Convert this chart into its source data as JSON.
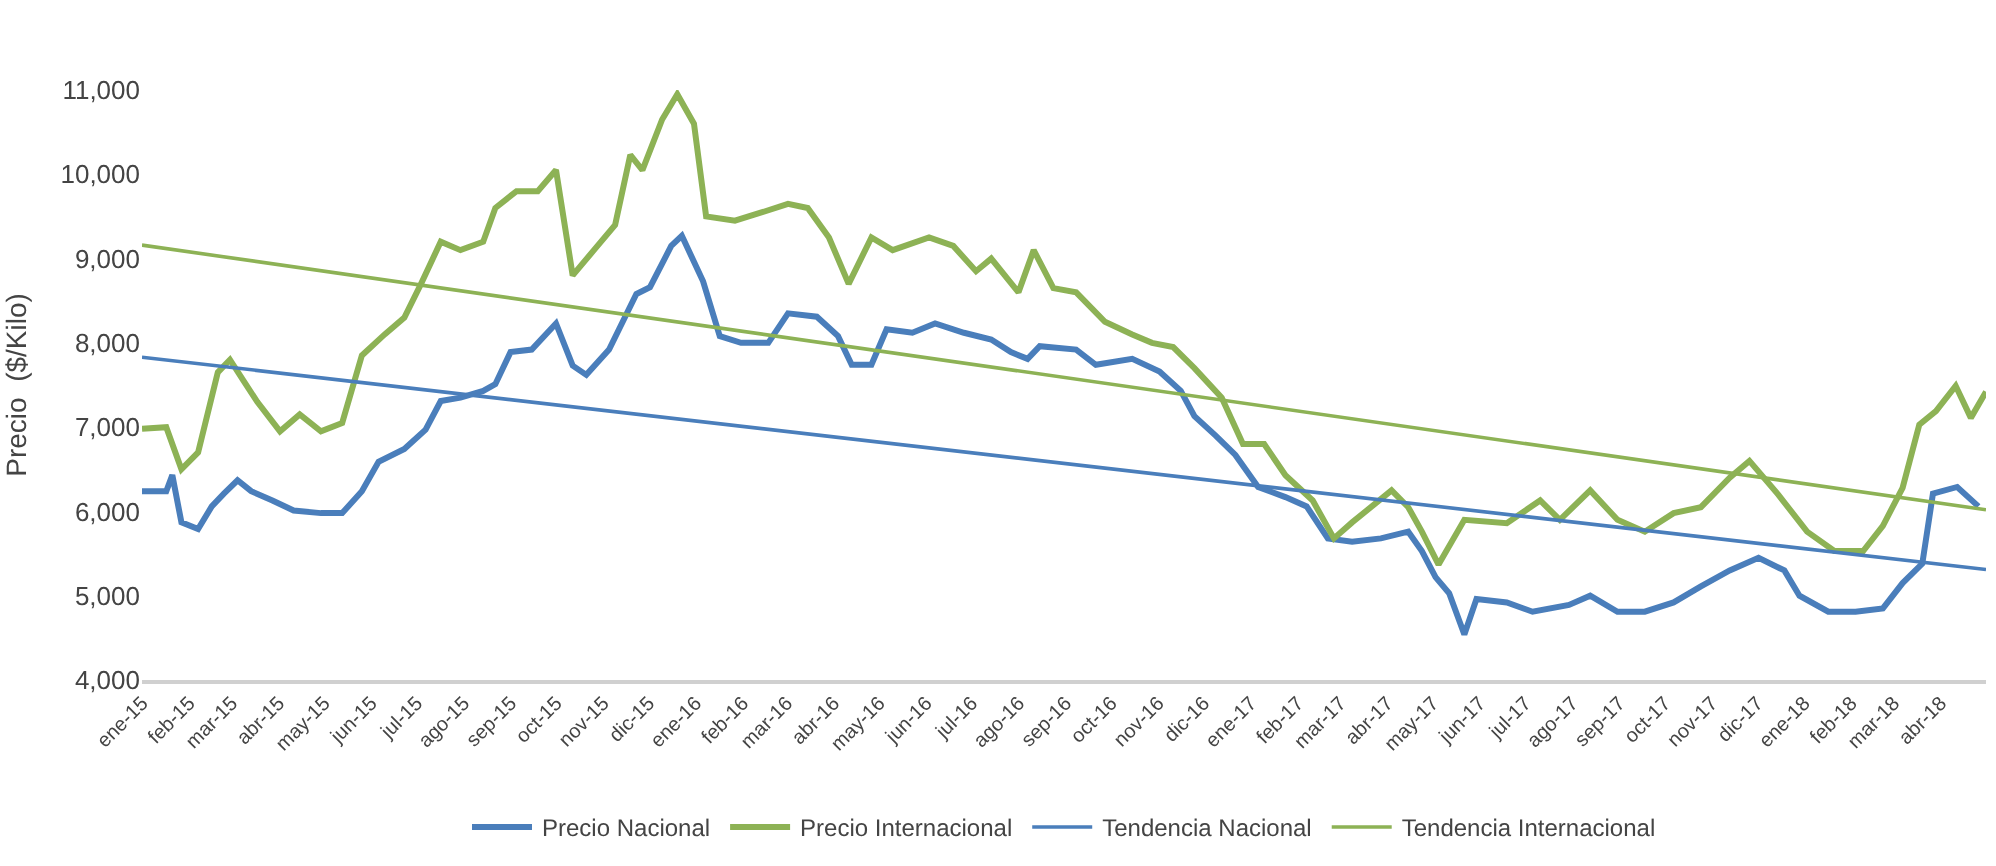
{
  "chart_data": {
    "type": "line",
    "ylabel": "Precio  ($/Kilo)",
    "ylim": [
      4000,
      11000
    ],
    "yticks": [
      {
        "value": 4000,
        "label": "4,000"
      },
      {
        "value": 5000,
        "label": "5,000"
      },
      {
        "value": 6000,
        "label": "6,000"
      },
      {
        "value": 7000,
        "label": "7,000"
      },
      {
        "value": 8000,
        "label": "8,000"
      },
      {
        "value": 9000,
        "label": "9,000"
      },
      {
        "value": 10000,
        "label": "10,000"
      },
      {
        "value": 11000,
        "label": "11,000"
      }
    ],
    "xlim": [
      "2015-01-01",
      "2018-05-01"
    ],
    "xticks": [
      {
        "value": "2015-01-01",
        "label": "ene-15"
      },
      {
        "value": "2015-02-01",
        "label": "feb-15"
      },
      {
        "value": "2015-03-01",
        "label": "mar-15"
      },
      {
        "value": "2015-04-01",
        "label": "abr-15"
      },
      {
        "value": "2015-05-01",
        "label": "may-15"
      },
      {
        "value": "2015-06-01",
        "label": "jun-15"
      },
      {
        "value": "2015-07-01",
        "label": "jul-15"
      },
      {
        "value": "2015-08-01",
        "label": "ago-15"
      },
      {
        "value": "2015-09-01",
        "label": "sep-15"
      },
      {
        "value": "2015-10-01",
        "label": "oct-15"
      },
      {
        "value": "2015-11-01",
        "label": "nov-15"
      },
      {
        "value": "2015-12-01",
        "label": "dic-15"
      },
      {
        "value": "2016-01-01",
        "label": "ene-16"
      },
      {
        "value": "2016-02-01",
        "label": "feb-16"
      },
      {
        "value": "2016-03-01",
        "label": "mar-16"
      },
      {
        "value": "2016-04-01",
        "label": "abr-16"
      },
      {
        "value": "2016-05-01",
        "label": "may-16"
      },
      {
        "value": "2016-06-01",
        "label": "jun-16"
      },
      {
        "value": "2016-07-01",
        "label": "jul-16"
      },
      {
        "value": "2016-08-01",
        "label": "ago-16"
      },
      {
        "value": "2016-09-01",
        "label": "sep-16"
      },
      {
        "value": "2016-10-01",
        "label": "oct-16"
      },
      {
        "value": "2016-11-01",
        "label": "nov-16"
      },
      {
        "value": "2016-12-01",
        "label": "dic-16"
      },
      {
        "value": "2017-01-01",
        "label": "ene-17"
      },
      {
        "value": "2017-02-01",
        "label": "feb-17"
      },
      {
        "value": "2017-03-01",
        "label": "mar-17"
      },
      {
        "value": "2017-04-01",
        "label": "abr-17"
      },
      {
        "value": "2017-05-01",
        "label": "may-17"
      },
      {
        "value": "2017-06-01",
        "label": "jun-17"
      },
      {
        "value": "2017-07-01",
        "label": "jul-17"
      },
      {
        "value": "2017-08-01",
        "label": "ago-17"
      },
      {
        "value": "2017-09-01",
        "label": "sep-17"
      },
      {
        "value": "2017-10-01",
        "label": "oct-17"
      },
      {
        "value": "2017-11-01",
        "label": "nov-17"
      },
      {
        "value": "2017-12-01",
        "label": "dic-17"
      },
      {
        "value": "2018-01-01",
        "label": "ene-18"
      },
      {
        "value": "2018-02-01",
        "label": "feb-18"
      },
      {
        "value": "2018-03-01",
        "label": "mar-18"
      },
      {
        "value": "2018-04-01",
        "label": "abr-18"
      }
    ],
    "legend": "bottom",
    "marker": "none",
    "series": [
      {
        "name": "Precio Nacional",
        "color": "#4a7ebb",
        "x": [
          "2015-01-01",
          "2015-01-17",
          "2015-01-21",
          "2015-01-27",
          "2015-02-07",
          "2015-02-16",
          "2015-02-24",
          "2015-03-05",
          "2015-03-14",
          "2015-03-28",
          "2015-04-11",
          "2015-04-29",
          "2015-05-13",
          "2015-05-26",
          "2015-06-06",
          "2015-06-23",
          "2015-07-07",
          "2015-07-17",
          "2015-07-30",
          "2015-08-14",
          "2015-08-22",
          "2015-09-01",
          "2015-09-15",
          "2015-10-01",
          "2015-10-12",
          "2015-10-21",
          "2015-11-05",
          "2015-11-23",
          "2015-12-02",
          "2015-12-16",
          "2015-12-23",
          "2016-01-06",
          "2016-01-17",
          "2016-01-31",
          "2016-02-18",
          "2016-03-02",
          "2016-03-21",
          "2016-04-04",
          "2016-04-13",
          "2016-04-26",
          "2016-05-06",
          "2016-05-23",
          "2016-06-07",
          "2016-06-26",
          "2016-07-14",
          "2016-07-27",
          "2016-08-07",
          "2016-08-15",
          "2016-09-08",
          "2016-09-21",
          "2016-10-15",
          "2016-11-02",
          "2016-11-16",
          "2016-11-25",
          "2016-12-09",
          "2016-12-22",
          "2017-01-06",
          "2017-01-24",
          "2017-02-07",
          "2017-02-21",
          "2017-03-09",
          "2017-03-28",
          "2017-04-15",
          "2017-04-24",
          "2017-05-03",
          "2017-05-12",
          "2017-05-22",
          "2017-05-30",
          "2017-06-19",
          "2017-07-06",
          "2017-07-30",
          "2017-08-13",
          "2017-08-31",
          "2017-09-18",
          "2017-10-07",
          "2017-10-25",
          "2017-11-13",
          "2017-12-02",
          "2017-12-19",
          "2017-12-29",
          "2018-01-17",
          "2018-02-04",
          "2018-02-22",
          "2018-03-07",
          "2018-03-20",
          "2018-03-27",
          "2018-04-12",
          "2018-04-26"
        ],
        "values": [
          6240,
          6240,
          6430,
          5870,
          5790,
          6060,
          6210,
          6370,
          6240,
          6130,
          6010,
          5980,
          5980,
          6240,
          6590,
          6740,
          6970,
          7310,
          7350,
          7430,
          7510,
          7890,
          7920,
          8230,
          7730,
          7620,
          7920,
          8580,
          8660,
          9150,
          9270,
          8730,
          8080,
          8000,
          8000,
          8350,
          8310,
          8080,
          7740,
          7740,
          8160,
          8120,
          8230,
          8120,
          8040,
          7890,
          7810,
          7960,
          7920,
          7740,
          7810,
          7660,
          7430,
          7130,
          6900,
          6670,
          6290,
          6170,
          6060,
          5680,
          5640,
          5680,
          5760,
          5530,
          5220,
          5030,
          4540,
          4960,
          4920,
          4810,
          4890,
          5000,
          4810,
          4810,
          4920,
          5110,
          5300,
          5450,
          5300,
          5000,
          4810,
          4810,
          4850,
          5150,
          5380,
          6210,
          6290,
          6060
        ]
      },
      {
        "name": "Precio Internacional",
        "color": "#8db255",
        "x": [
          "2015-01-01",
          "2015-01-17",
          "2015-01-27",
          "2015-02-07",
          "2015-02-20",
          "2015-02-28",
          "2015-03-09",
          "2015-03-18",
          "2015-04-02",
          "2015-04-15",
          "2015-04-29",
          "2015-05-13",
          "2015-05-26",
          "2015-06-10",
          "2015-06-23",
          "2015-07-04",
          "2015-07-17",
          "2015-07-30",
          "2015-08-14",
          "2015-08-22",
          "2015-09-05",
          "2015-09-19",
          "2015-10-01",
          "2015-10-12",
          "2015-10-26",
          "2015-11-09",
          "2015-11-19",
          "2015-11-27",
          "2015-12-10",
          "2015-12-20",
          "2015-12-31",
          "2016-01-08",
          "2016-01-27",
          "2016-02-14",
          "2016-03-02",
          "2016-03-15",
          "2016-03-29",
          "2016-04-11",
          "2016-04-26",
          "2016-05-10",
          "2016-06-03",
          "2016-06-19",
          "2016-07-04",
          "2016-07-14",
          "2016-08-01",
          "2016-08-11",
          "2016-08-24",
          "2016-09-08",
          "2016-09-27",
          "2016-10-15",
          "2016-10-28",
          "2016-11-11",
          "2016-11-25",
          "2016-12-13",
          "2016-12-27",
          "2017-01-10",
          "2017-01-24",
          "2017-02-11",
          "2017-02-25",
          "2017-03-09",
          "2017-04-04",
          "2017-04-15",
          "2017-04-24",
          "2017-05-05",
          "2017-05-22",
          "2017-06-19",
          "2017-07-11",
          "2017-07-24",
          "2017-08-13",
          "2017-08-31",
          "2017-09-18",
          "2017-10-07",
          "2017-10-25",
          "2017-11-13",
          "2017-11-26",
          "2017-12-15",
          "2018-01-03",
          "2018-01-21",
          "2018-02-09",
          "2018-02-22",
          "2018-03-07",
          "2018-03-18",
          "2018-03-29",
          "2018-04-11",
          "2018-04-21",
          "2018-05-01"
        ],
        "values": [
          6980,
          7000,
          6500,
          6700,
          7650,
          7800,
          7550,
          7300,
          6950,
          7150,
          6950,
          7050,
          7850,
          8100,
          8300,
          8700,
          9200,
          9100,
          9200,
          9600,
          9800,
          9800,
          10050,
          8800,
          9100,
          9400,
          10230,
          10050,
          10650,
          10950,
          10600,
          9500,
          9450,
          9550,
          9650,
          9600,
          9250,
          8700,
          9250,
          9100,
          9250,
          9150,
          8850,
          9000,
          8600,
          9100,
          8650,
          8600,
          8250,
          8100,
          8000,
          7950,
          7700,
          7350,
          6800,
          6800,
          6430,
          6130,
          5680,
          5870,
          6250,
          6050,
          5760,
          5370,
          5900,
          5860,
          6130,
          5900,
          6250,
          5900,
          5760,
          5980,
          6050,
          6400,
          6600,
          6200,
          5760,
          5530,
          5530,
          5830,
          6280,
          7030,
          7190,
          7490,
          7110,
          7420
        ]
      },
      {
        "name": "Tendencia Nacional",
        "color": "#4a7ebb",
        "x": [
          "2015-01-01",
          "2018-05-01"
        ],
        "values": [
          7830,
          5310
        ]
      },
      {
        "name": "Tendencia Internacional",
        "color": "#8db255",
        "x": [
          "2015-01-01",
          "2018-05-01"
        ],
        "values": [
          9160,
          6020
        ]
      }
    ]
  }
}
